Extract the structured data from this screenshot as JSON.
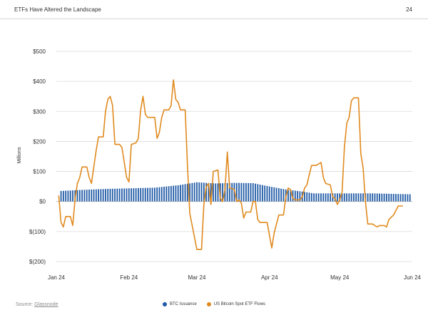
{
  "header": {
    "title": "ETFs Have Altered the Landscape",
    "page_number": "24"
  },
  "footer": {
    "source_prefix": "Source: ",
    "source_name": "Glassnode"
  },
  "colors": {
    "issuance": "#1f5aa6",
    "etf_flows": "#e08a1e",
    "grid": "#d9d9d9"
  },
  "chart_data": {
    "type": "bar+line",
    "title": "",
    "ylabel": "Millions",
    "ylim": [
      -200,
      500
    ],
    "y_ticks": [
      -200,
      -100,
      0,
      100,
      200,
      300,
      400,
      500
    ],
    "y_tick_labels": [
      "$(200)",
      "$(100)",
      "$0",
      "$100",
      "$200",
      "$300",
      "$400",
      "$500"
    ],
    "x_ticks": [
      "2024-01-01",
      "2024-02-01",
      "2024-03-01",
      "2024-04-01",
      "2024-05-01",
      "2024-06-01"
    ],
    "x_tick_labels": [
      "Jan 24",
      "Feb 24",
      "Mar 24",
      "Apr 24",
      "May 24",
      "Jun 24"
    ],
    "xlim": [
      "2024-01-01",
      "2024-06-01"
    ],
    "grid": true,
    "legend_position": "bottom",
    "series": [
      {
        "name": "BTC Issuance",
        "type": "bar",
        "points": [
          [
            "2024-01-03",
            35
          ],
          [
            "2024-01-13",
            39
          ],
          [
            "2024-01-23",
            42
          ],
          [
            "2024-02-02",
            44
          ],
          [
            "2024-02-12",
            46
          ],
          [
            "2024-02-22",
            54
          ],
          [
            "2024-03-01",
            64
          ],
          [
            "2024-03-09",
            60
          ],
          [
            "2024-03-17",
            62
          ],
          [
            "2024-03-25",
            61
          ],
          [
            "2024-04-01",
            50
          ],
          [
            "2024-04-08",
            40
          ],
          [
            "2024-04-15",
            33
          ],
          [
            "2024-04-20",
            27
          ],
          [
            "2024-05-01",
            27
          ],
          [
            "2024-05-15",
            27
          ],
          [
            "2024-05-31",
            24
          ]
        ]
      },
      {
        "name": "US Bitcoin Spot ETF Flows",
        "type": "line",
        "points": [
          [
            "2024-01-02",
            20
          ],
          [
            "2024-01-03",
            -70
          ],
          [
            "2024-01-04",
            -85
          ],
          [
            "2024-01-05",
            -50
          ],
          [
            "2024-01-07",
            -50
          ],
          [
            "2024-01-08",
            -80
          ],
          [
            "2024-01-09",
            10
          ],
          [
            "2024-01-10",
            60
          ],
          [
            "2024-01-11",
            80
          ],
          [
            "2024-01-12",
            115
          ],
          [
            "2024-01-14",
            115
          ],
          [
            "2024-01-15",
            80
          ],
          [
            "2024-01-16",
            60
          ],
          [
            "2024-01-18",
            170
          ],
          [
            "2024-01-19",
            215
          ],
          [
            "2024-01-21",
            215
          ],
          [
            "2024-01-22",
            300
          ],
          [
            "2024-01-23",
            340
          ],
          [
            "2024-01-24",
            350
          ],
          [
            "2024-01-25",
            320
          ],
          [
            "2024-01-26",
            190
          ],
          [
            "2024-01-28",
            190
          ],
          [
            "2024-01-29",
            180
          ],
          [
            "2024-01-30",
            130
          ],
          [
            "2024-01-31",
            80
          ],
          [
            "2024-02-01",
            65
          ],
          [
            "2024-02-02",
            190
          ],
          [
            "2024-02-04",
            195
          ],
          [
            "2024-02-05",
            210
          ],
          [
            "2024-02-06",
            305
          ],
          [
            "2024-02-07",
            350
          ],
          [
            "2024-02-08",
            290
          ],
          [
            "2024-02-09",
            280
          ],
          [
            "2024-02-12",
            280
          ],
          [
            "2024-02-13",
            210
          ],
          [
            "2024-02-14",
            230
          ],
          [
            "2024-02-15",
            280
          ],
          [
            "2024-02-16",
            305
          ],
          [
            "2024-02-18",
            305
          ],
          [
            "2024-02-19",
            320
          ],
          [
            "2024-02-20",
            405
          ],
          [
            "2024-02-21",
            340
          ],
          [
            "2024-02-22",
            330
          ],
          [
            "2024-02-23",
            305
          ],
          [
            "2024-02-25",
            305
          ],
          [
            "2024-02-26",
            120
          ],
          [
            "2024-02-27",
            -40
          ],
          [
            "2024-02-29",
            -120
          ],
          [
            "2024-03-01",
            -160
          ],
          [
            "2024-03-03",
            -160
          ],
          [
            "2024-03-04",
            -10
          ],
          [
            "2024-03-05",
            50
          ],
          [
            "2024-03-06",
            60
          ],
          [
            "2024-03-07",
            -10
          ],
          [
            "2024-03-08",
            100
          ],
          [
            "2024-03-10",
            105
          ],
          [
            "2024-03-11",
            10
          ],
          [
            "2024-03-12",
            0
          ],
          [
            "2024-03-13",
            40
          ],
          [
            "2024-03-14",
            165
          ],
          [
            "2024-03-15",
            45
          ],
          [
            "2024-03-17",
            40
          ],
          [
            "2024-03-18",
            0
          ],
          [
            "2024-03-19",
            5
          ],
          [
            "2024-03-20",
            -5
          ],
          [
            "2024-03-21",
            -55
          ],
          [
            "2024-03-22",
            -35
          ],
          [
            "2024-03-24",
            -35
          ],
          [
            "2024-03-25",
            0
          ],
          [
            "2024-03-26",
            0
          ],
          [
            "2024-03-27",
            -60
          ],
          [
            "2024-03-28",
            -70
          ],
          [
            "2024-03-31",
            -70
          ],
          [
            "2024-04-02",
            -155
          ],
          [
            "2024-04-03",
            -105
          ],
          [
            "2024-04-05",
            -45
          ],
          [
            "2024-04-07",
            -45
          ],
          [
            "2024-04-08",
            15
          ],
          [
            "2024-04-09",
            45
          ],
          [
            "2024-04-10",
            40
          ],
          [
            "2024-04-11",
            10
          ],
          [
            "2024-04-12",
            5
          ],
          [
            "2024-04-14",
            5
          ],
          [
            "2024-04-15",
            15
          ],
          [
            "2024-04-16",
            45
          ],
          [
            "2024-04-17",
            55
          ],
          [
            "2024-04-18",
            90
          ],
          [
            "2024-04-19",
            120
          ],
          [
            "2024-04-21",
            120
          ],
          [
            "2024-04-22",
            125
          ],
          [
            "2024-04-23",
            130
          ],
          [
            "2024-04-24",
            80
          ],
          [
            "2024-04-25",
            60
          ],
          [
            "2024-04-27",
            55
          ],
          [
            "2024-04-28",
            15
          ],
          [
            "2024-04-29",
            10
          ],
          [
            "2024-04-30",
            -10
          ],
          [
            "2024-05-01",
            5
          ],
          [
            "2024-05-02",
            30
          ],
          [
            "2024-05-03",
            180
          ],
          [
            "2024-05-04",
            260
          ],
          [
            "2024-05-05",
            280
          ],
          [
            "2024-05-06",
            335
          ],
          [
            "2024-05-07",
            345
          ],
          [
            "2024-05-09",
            345
          ],
          [
            "2024-05-10",
            160
          ],
          [
            "2024-05-11",
            110
          ],
          [
            "2024-05-12",
            0
          ],
          [
            "2024-05-13",
            -75
          ],
          [
            "2024-05-15",
            -75
          ],
          [
            "2024-05-17",
            -85
          ],
          [
            "2024-05-18",
            -80
          ],
          [
            "2024-05-20",
            -80
          ],
          [
            "2024-05-21",
            -85
          ],
          [
            "2024-05-22",
            -60
          ],
          [
            "2024-05-24",
            -45
          ],
          [
            "2024-05-26",
            -15
          ],
          [
            "2024-05-28",
            -15
          ]
        ]
      }
    ]
  }
}
